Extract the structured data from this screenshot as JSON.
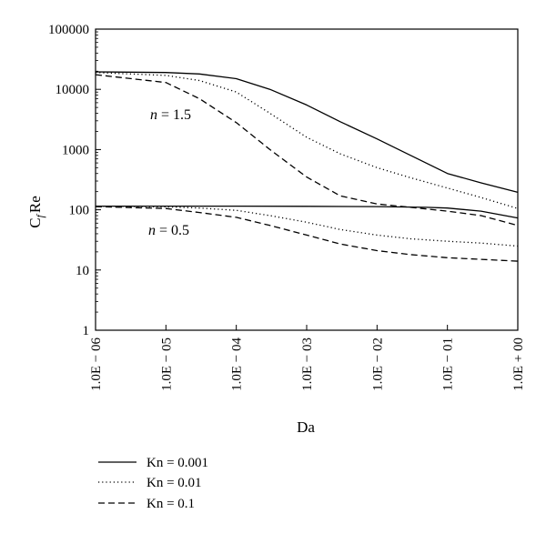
{
  "chart_data": {
    "type": "line",
    "xlabel": "Da",
    "ylabel_main": "C",
    "ylabel_sub": "f",
    "ylabel_tail": "Re",
    "xscale": "log",
    "yscale": "log",
    "xlim": [
      1e-06,
      1
    ],
    "ylim": [
      1,
      100000
    ],
    "x_ticks": [
      "1.0E − 06",
      "1.0E − 05",
      "1.0E − 04",
      "1.0E − 03",
      "1.0E − 02",
      "1.0E − 01",
      "1.0E + 00"
    ],
    "y_ticks": [
      "1",
      "10",
      "100",
      "1000",
      "10000",
      "100000"
    ],
    "grid": false,
    "legend_position": "bottom-left",
    "annotations": [
      {
        "text_italic": "n",
        "text_rest": " = 1.5"
      },
      {
        "text_italic": "n",
        "text_rest": " = 0.5"
      }
    ],
    "series": [
      {
        "name": "Kn = 0.001",
        "style": "solid",
        "group": "n = 1.5",
        "x": [
          1e-06,
          1e-05,
          3e-05,
          0.0001,
          0.0003,
          0.001,
          0.003,
          0.01,
          0.03,
          0.1,
          0.3,
          1
        ],
        "y": [
          19500,
          19000,
          18000,
          15000,
          10000,
          5500,
          2900,
          1500,
          800,
          400,
          280,
          195
        ]
      },
      {
        "name": "Kn = 0.01",
        "style": "dotted",
        "group": "n = 1.5",
        "x": [
          1e-06,
          1e-05,
          3e-05,
          0.0001,
          0.0003,
          0.001,
          0.003,
          0.01,
          0.03,
          0.1,
          0.3,
          1
        ],
        "y": [
          19000,
          17000,
          14000,
          9000,
          4000,
          1600,
          850,
          500,
          340,
          230,
          160,
          105
        ]
      },
      {
        "name": "Kn = 0.1",
        "style": "dashed",
        "group": "n = 1.5",
        "x": [
          1e-06,
          1e-05,
          3e-05,
          0.0001,
          0.0003,
          0.001,
          0.003,
          0.01,
          0.03,
          0.1,
          0.3,
          1
        ],
        "y": [
          17500,
          13000,
          7000,
          2800,
          1000,
          350,
          170,
          125,
          110,
          95,
          80,
          55
        ]
      },
      {
        "name": "Kn = 0.001",
        "style": "solid",
        "group": "n = 0.5",
        "x": [
          1e-06,
          1e-05,
          0.0001,
          0.001,
          0.01,
          0.05,
          0.1,
          0.3,
          1
        ],
        "y": [
          115,
          115,
          115,
          114,
          113,
          110,
          107,
          95,
          73
        ]
      },
      {
        "name": "Kn = 0.01",
        "style": "dotted",
        "group": "n = 0.5",
        "x": [
          1e-06,
          1e-05,
          3e-05,
          0.0001,
          0.0003,
          0.001,
          0.003,
          0.01,
          0.03,
          0.1,
          0.3,
          1
        ],
        "y": [
          115,
          112,
          107,
          98,
          80,
          62,
          47,
          38,
          33,
          30,
          28,
          25
        ]
      },
      {
        "name": "Kn = 0.1",
        "style": "dashed",
        "group": "n = 0.5",
        "x": [
          1e-06,
          1e-05,
          3e-05,
          0.0001,
          0.0003,
          0.001,
          0.003,
          0.01,
          0.03,
          0.1,
          0.3,
          1
        ],
        "y": [
          113,
          105,
          90,
          75,
          55,
          38,
          27,
          21,
          18,
          16,
          15,
          14
        ]
      }
    ],
    "legend": [
      {
        "label": "Kn = 0.001",
        "style": "solid"
      },
      {
        "label": "Kn = 0.01",
        "style": "dotted"
      },
      {
        "label": "Kn = 0.1",
        "style": "dashed"
      }
    ]
  }
}
